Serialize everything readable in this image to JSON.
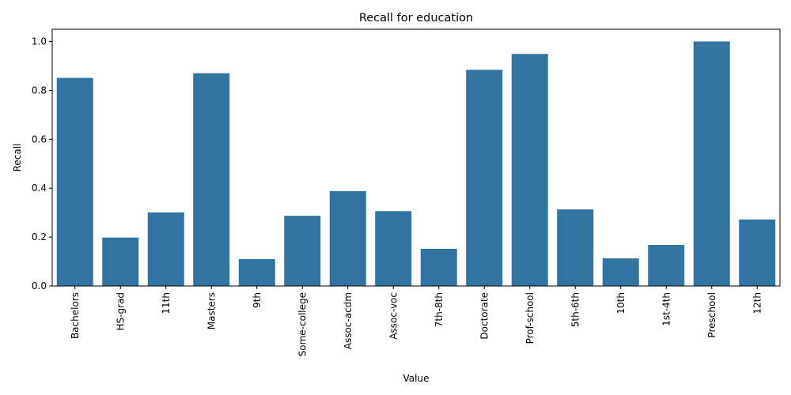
{
  "chart_data": {
    "type": "bar",
    "title": "Recall for education",
    "xlabel": "Value",
    "ylabel": "Recall",
    "categories": [
      "Bachelors",
      "HS-grad",
      "11th",
      "Masters",
      "9th",
      "Some-college",
      "Assoc-acdm",
      "Assoc-voc",
      "7th-8th",
      "Doctorate",
      "Prof-school",
      "5th-6th",
      "10th",
      "1st-4th",
      "Preschool",
      "12th"
    ],
    "values": [
      0.851,
      0.198,
      0.301,
      0.87,
      0.11,
      0.287,
      0.388,
      0.306,
      0.152,
      0.884,
      0.949,
      0.313,
      0.113,
      0.168,
      1.0,
      0.272
    ],
    "ylim": [
      0,
      1.05
    ],
    "yticks": [
      "0.0",
      "0.2",
      "0.4",
      "0.6",
      "0.8",
      "1.0"
    ],
    "bar_color": "#3274a1",
    "grid": false,
    "legend": "none"
  }
}
